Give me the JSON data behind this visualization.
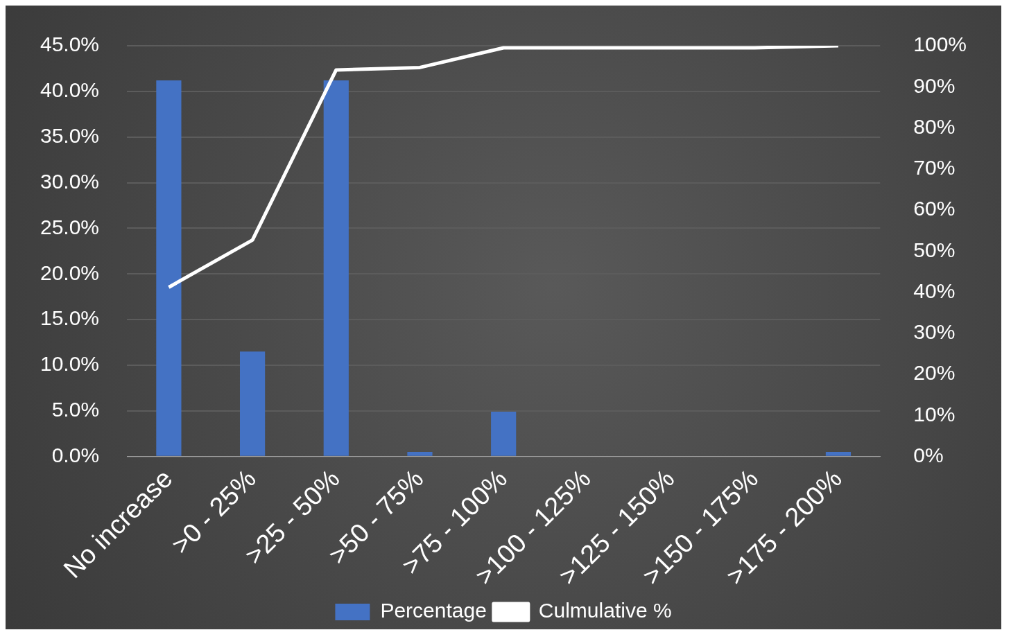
{
  "chart_data": {
    "type": "bar",
    "categories": [
      "No increase",
      ">0 - 25%",
      ">25 - 50%",
      ">50 - 75%",
      ">75 - 100%",
      ">100 - 125%",
      ">125 - 150%",
      ">150 - 175%",
      ">175 - 200%"
    ],
    "series": [
      {
        "name": "Percentage",
        "color": "#4472c4",
        "values": [
          41.2,
          11.5,
          41.2,
          0.5,
          4.9,
          0,
          0,
          0,
          0.5
        ]
      },
      {
        "name": "Culmulative %",
        "type": "line",
        "axis": "y2",
        "color": "#ffffff",
        "values": [
          41.2,
          52.7,
          94.1,
          94.7,
          99.5,
          99.5,
          99.5,
          99.5,
          100
        ]
      }
    ],
    "ylim": [
      0,
      45
    ],
    "yticks": [
      {
        "value": 0,
        "label": "0.0%"
      },
      {
        "value": 5,
        "label": "5.0%"
      },
      {
        "value": 10,
        "label": "10.0%"
      },
      {
        "value": 15,
        "label": "15.0%"
      },
      {
        "value": 20,
        "label": "20.0%"
      },
      {
        "value": 25,
        "label": "25.0%"
      },
      {
        "value": 30,
        "label": "30.0%"
      },
      {
        "value": 35,
        "label": "35.0%"
      },
      {
        "value": 40,
        "label": "40.0%"
      },
      {
        "value": 45,
        "label": "45.0%"
      }
    ],
    "y2lim": [
      0,
      100
    ],
    "y2ticks": [
      {
        "value": 0,
        "label": "0%"
      },
      {
        "value": 10,
        "label": "10%"
      },
      {
        "value": 20,
        "label": "20%"
      },
      {
        "value": 30,
        "label": "30%"
      },
      {
        "value": 40,
        "label": "40%"
      },
      {
        "value": 50,
        "label": "50%"
      },
      {
        "value": 60,
        "label": "60%"
      },
      {
        "value": 70,
        "label": "70%"
      },
      {
        "value": 80,
        "label": "80%"
      },
      {
        "value": 90,
        "label": "90%"
      },
      {
        "value": 100,
        "label": "100%"
      }
    ],
    "grid": "y",
    "legend": "bottom",
    "marker": "none",
    "line_style": "solid"
  }
}
